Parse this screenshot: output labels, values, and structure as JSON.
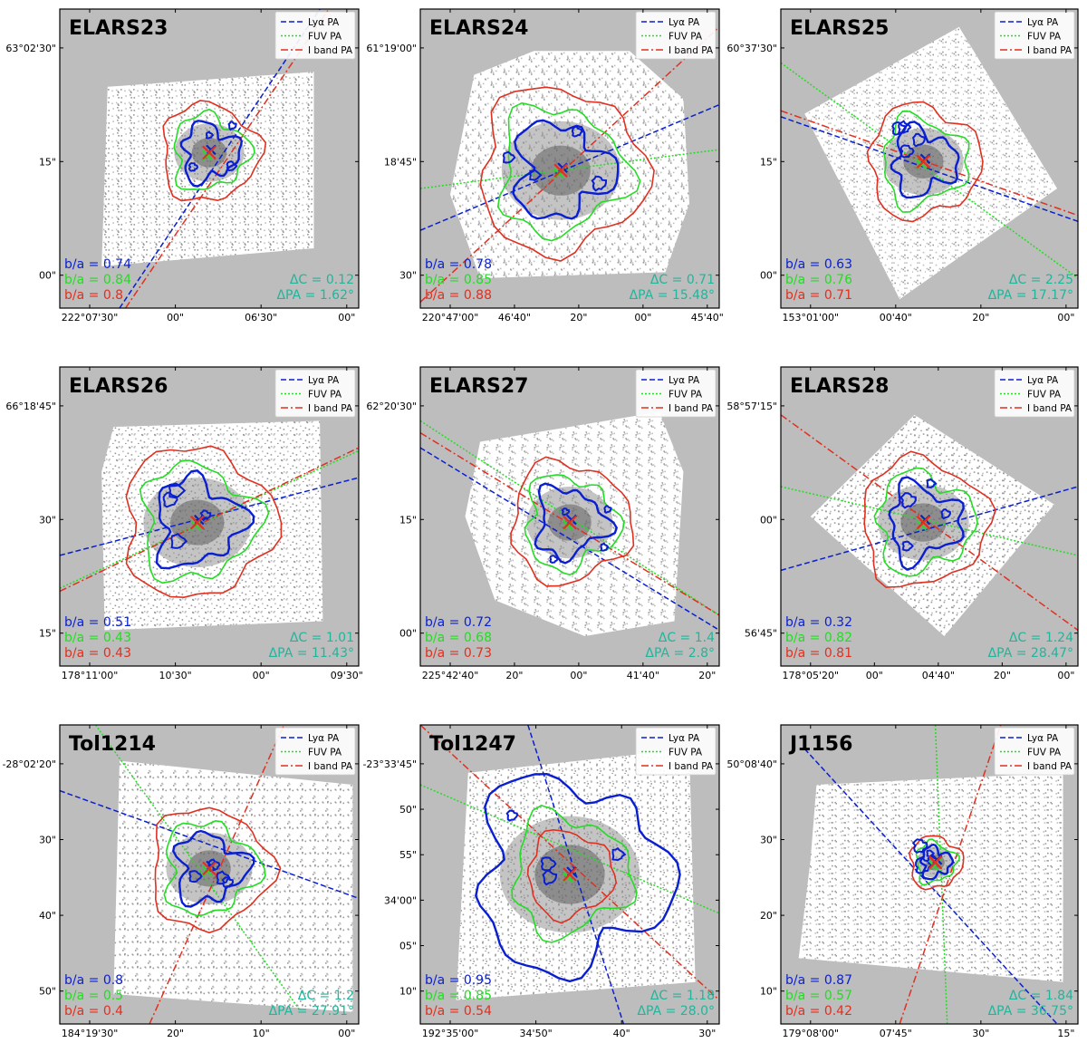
{
  "legend": {
    "lya": "Lyα PA",
    "fuv": "FUV PA",
    "iband": "I band PA"
  },
  "colors": {
    "lya": "#0a1fd0",
    "fuv": "#22dd22",
    "iband": "#e03020",
    "delta": "#21b59b",
    "background": "#bdbdbd"
  },
  "panels": [
    {
      "name": "ELARS23",
      "yticks": [
        "63°02'30\"",
        "15\"",
        "00\""
      ],
      "xticks": [
        "222°07'30\"",
        "00\"",
        "06'30\"",
        "00\""
      ],
      "ba_lya": "b/a = 0.74",
      "ba_fuv": "b/a = 0.84",
      "ba_i": "b/a = 0.8",
      "dC": "ΔC   = 0.12",
      "dPA": "ΔPA = 1.62°"
    },
    {
      "name": "ELARS24",
      "yticks": [
        "61°19'00\"",
        "18'45\"",
        "30\""
      ],
      "xticks": [
        "220°47'00\"",
        "46'40\"",
        "20\"",
        "00\"",
        "45'40\""
      ],
      "ba_lya": "b/a = 0.78",
      "ba_fuv": "b/a = 0.85",
      "ba_i": "b/a = 0.88",
      "dC": "ΔC   = 0.71",
      "dPA": "ΔPA = 15.48°"
    },
    {
      "name": "ELARS25",
      "yticks": [
        "60°37'30\"",
        "15\"",
        "00\""
      ],
      "xticks": [
        "153°01'00\"",
        "00'40\"",
        "20\"",
        "00\""
      ],
      "ba_lya": "b/a = 0.63",
      "ba_fuv": "b/a = 0.76",
      "ba_i": "b/a = 0.71",
      "dC": "ΔC   = 2.25",
      "dPA": "ΔPA = 17.17°"
    },
    {
      "name": "ELARS26",
      "yticks": [
        "66°18'45\"",
        "30\"",
        "15\""
      ],
      "xticks": [
        "178°11'00\"",
        "10'30\"",
        "00\"",
        "09'30\""
      ],
      "ba_lya": "b/a = 0.51",
      "ba_fuv": "b/a = 0.43",
      "ba_i": "b/a = 0.43",
      "dC": "ΔC   = 1.01",
      "dPA": "ΔPA = 11.43°"
    },
    {
      "name": "ELARS27",
      "yticks": [
        "62°20'30\"",
        "15\"",
        "00\""
      ],
      "xticks": [
        "225°42'40\"",
        "20\"",
        "00\"",
        "41'40\"",
        "20\""
      ],
      "ba_lya": "b/a = 0.72",
      "ba_fuv": "b/a = 0.68",
      "ba_i": "b/a = 0.73",
      "dC": "ΔC   = 1.4",
      "dPA": "ΔPA = 2.8°"
    },
    {
      "name": "ELARS28",
      "yticks": [
        "58°57'15\"",
        "00\"",
        "56'45\""
      ],
      "xticks": [
        "178°05'20\"",
        "00\"",
        "04'40\"",
        "20\"",
        "00\""
      ],
      "ba_lya": "b/a = 0.32",
      "ba_fuv": "b/a = 0.82",
      "ba_i": "b/a = 0.81",
      "dC": "ΔC   = 1.24",
      "dPA": "ΔPA = 28.47°"
    },
    {
      "name": "Tol1214",
      "yticks": [
        "-28°02'20\"",
        "30\"",
        "40\"",
        "50\""
      ],
      "xticks": [
        "184°19'30\"",
        "20\"",
        "10\"",
        "00\""
      ],
      "ba_lya": "b/a = 0.8",
      "ba_fuv": "b/a = 0.5",
      "ba_i": "b/a = 0.4",
      "dC": "ΔC   = 1.2",
      "dPA": "ΔPA = 27.91°"
    },
    {
      "name": "Tol1247",
      "yticks": [
        "-23°33'45\"",
        "50\"",
        "55\"",
        "34'00\"",
        "05\"",
        "10\""
      ],
      "xticks": [
        "192°35'00\"",
        "34'50\"",
        "40\"",
        "30\""
      ],
      "ba_lya": "b/a = 0.95",
      "ba_fuv": "b/a = 0.85",
      "ba_i": "b/a = 0.54",
      "dC": "ΔC   = 1.18",
      "dPA": "ΔPA = 28.0°"
    },
    {
      "name": "J1156",
      "yticks": [
        "50°08'40\"",
        "30\"",
        "20\"",
        "10\""
      ],
      "xticks": [
        "179°08'00\"",
        "07'45\"",
        "30\"",
        "15\""
      ],
      "ba_lya": "b/a = 0.87",
      "ba_fuv": "b/a = 0.57",
      "ba_i": "b/a = 0.42",
      "dC": "ΔC   = 1.84",
      "dPA": "ΔPA = 36.75°"
    }
  ]
}
